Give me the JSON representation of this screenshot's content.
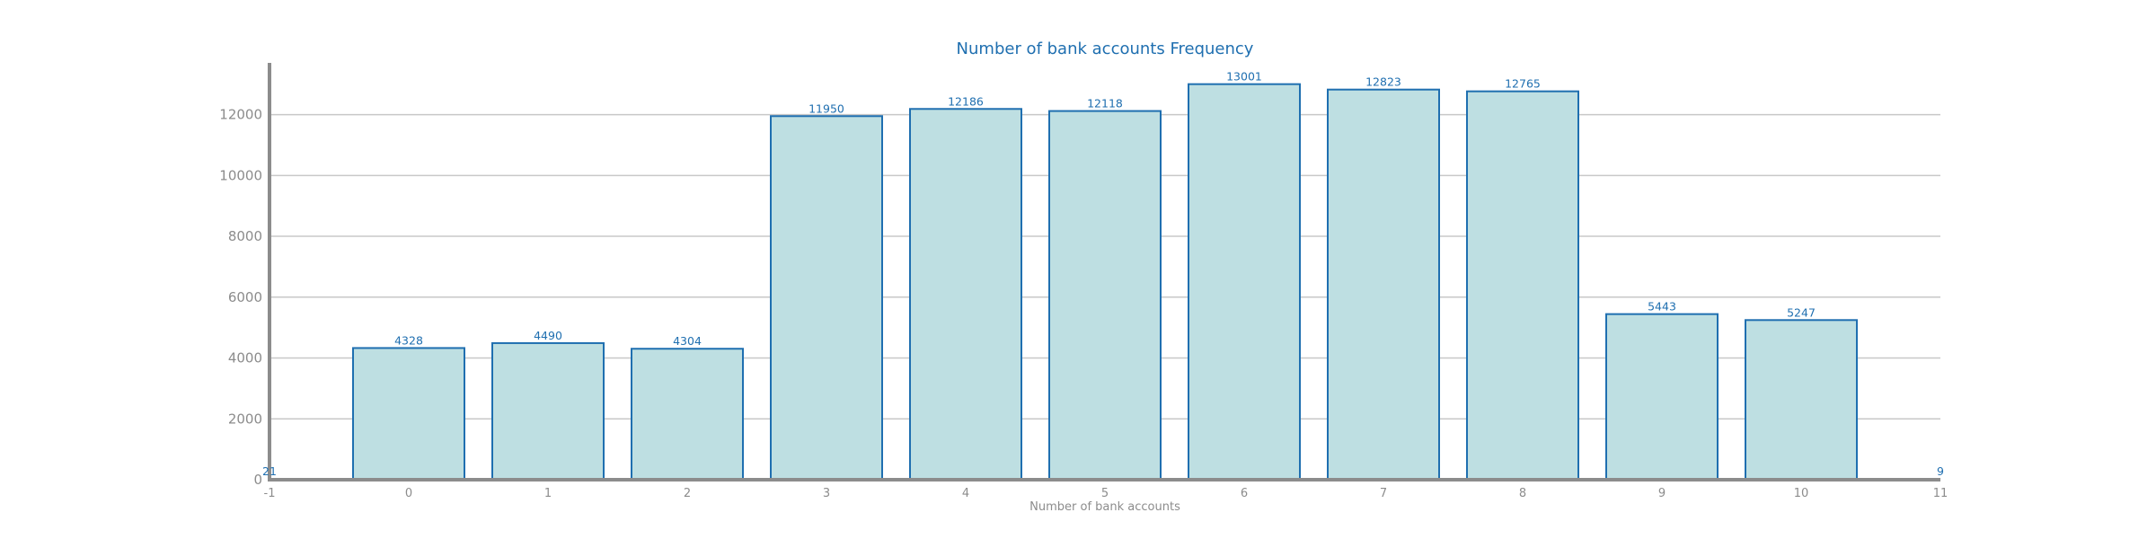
{
  "chart_data": {
    "type": "bar",
    "title": "Number of bank accounts Frequency",
    "xlabel": "Number of bank accounts",
    "ylabel": "",
    "categories": [
      "0",
      "1",
      "2",
      "3",
      "4",
      "5",
      "6",
      "7",
      "8",
      "9",
      "10"
    ],
    "x": [
      0,
      1,
      2,
      3,
      4,
      5,
      6,
      7,
      8,
      9,
      10
    ],
    "values": [
      4328,
      4490,
      4304,
      11950,
      12186,
      12118,
      13001,
      12823,
      12765,
      5443,
      5247
    ],
    "value_labels": [
      "4328",
      "4490",
      "4304",
      "11950",
      "12186",
      "12118",
      "13001",
      "12823",
      "12765",
      "5443",
      "5247"
    ],
    "xlim": [
      -1,
      11
    ],
    "ylim": [
      0,
      13700
    ],
    "x_ticks": [
      "-1",
      "0",
      "1",
      "2",
      "3",
      "4",
      "5",
      "6",
      "7",
      "8",
      "9",
      "10",
      "11"
    ],
    "y_ticks": [
      "0",
      "2000",
      "4000",
      "6000",
      "8000",
      "10000",
      "12000"
    ],
    "y_tick_values": [
      0,
      2000,
      4000,
      6000,
      8000,
      10000,
      12000
    ],
    "edge_labels": [
      {
        "text": "21",
        "x": -1
      },
      {
        "text": "9",
        "x": 11
      }
    ],
    "grid": true,
    "legend": "none",
    "colors": {
      "bar_fill": "#bedfe2",
      "bar_edge": "#1f6fb0",
      "label": "#1f6fb0",
      "title": "#1f6fb0",
      "tick": "#8c8c8c",
      "grid": "#c8c8c8",
      "axis": "#8c8c8c"
    }
  }
}
